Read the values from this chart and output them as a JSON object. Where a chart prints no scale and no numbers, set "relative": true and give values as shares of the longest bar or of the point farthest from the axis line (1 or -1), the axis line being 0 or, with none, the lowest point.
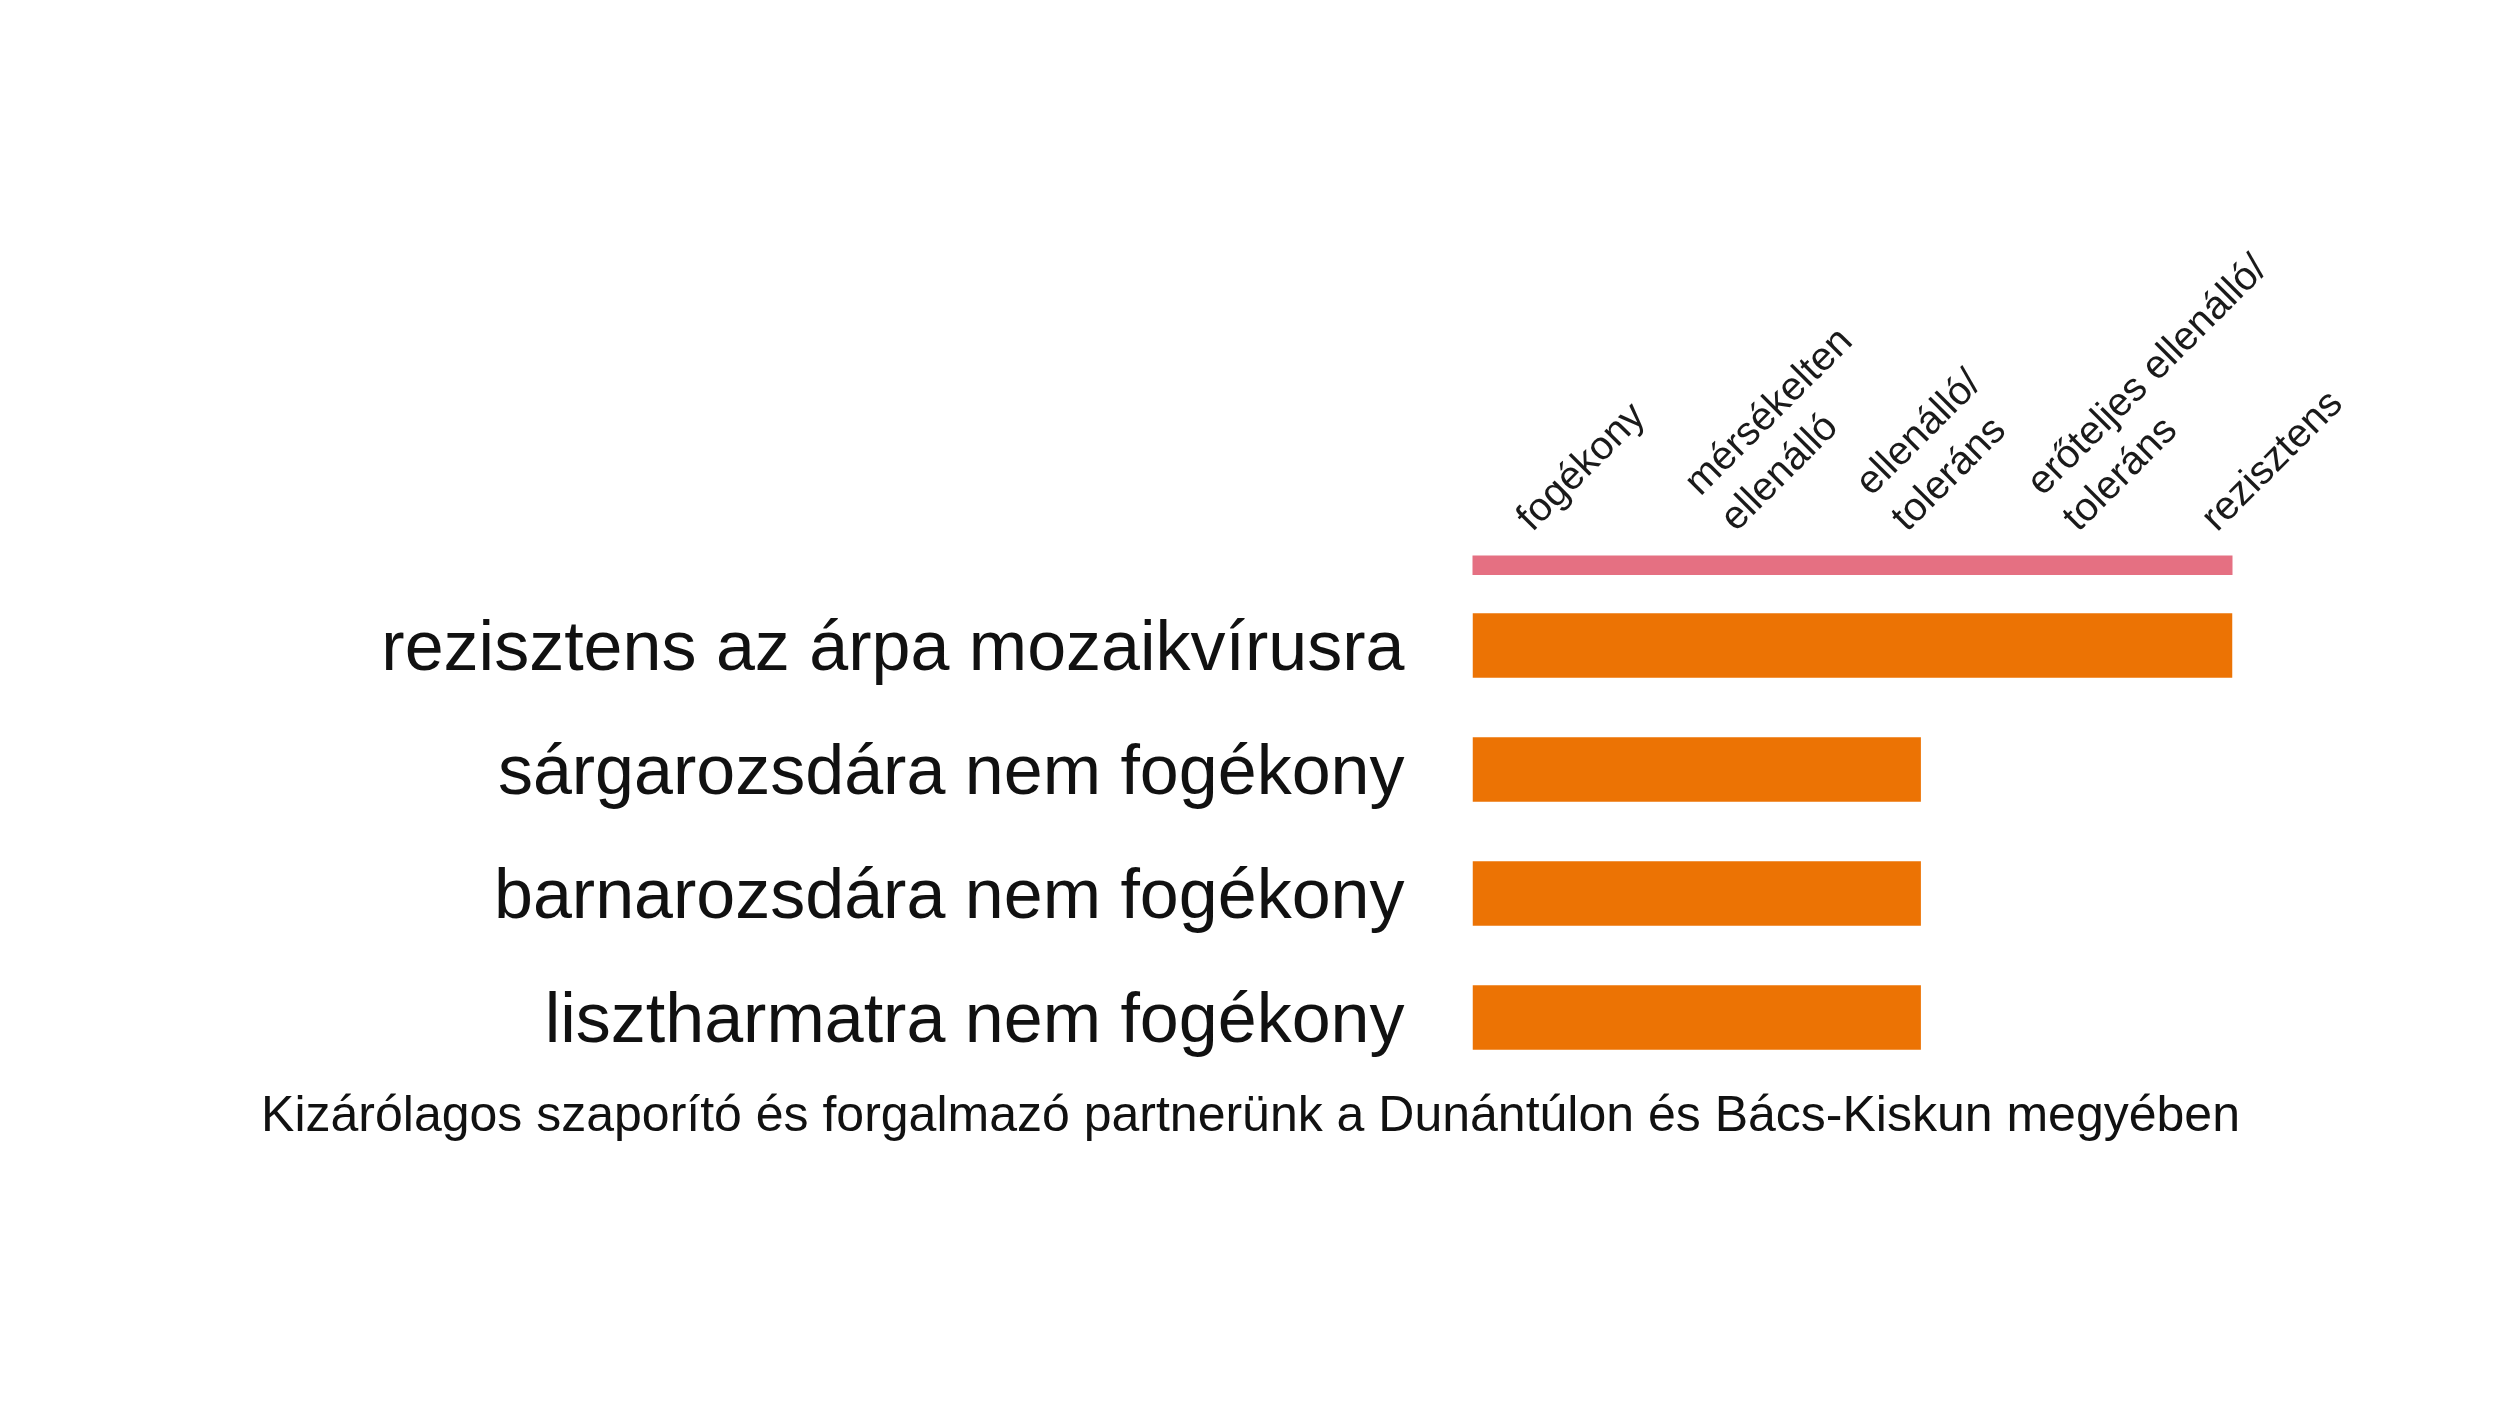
{
  "chart_data": {
    "type": "bar",
    "orientation": "horizontal",
    "relative": true,
    "categories": [
      "rezisztens az árpa mozaikvírusra",
      "sárgarozsdára nem fogékony",
      "barnarozsdára nem fogékony",
      "lisztharmatra nem fogékony"
    ],
    "values": [
      1,
      0.59,
      0.59,
      0.59
    ],
    "color": "#ec7304",
    "annotations": [
      "fogékony",
      "mérsékelten\nellenálló",
      "ellenálló/\ntoleráns",
      "erőteljes ellenálló/\ntoleráns",
      "rezisztens",
      "Kizárólagos szaporító és forgalmazó partnerünk a Dunántúlon és Bács-Kiskun megyében"
    ]
  }
}
